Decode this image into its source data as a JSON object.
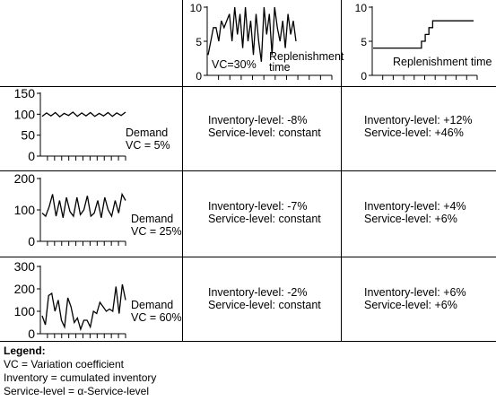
{
  "header": {
    "vc_chart": {
      "label": "VC=30%",
      "caption_line1": "Replenishment",
      "caption_line2": "time",
      "ticks": [
        "0",
        "5",
        "10"
      ],
      "ylim": [
        0,
        10
      ],
      "values": [
        3,
        5,
        7,
        7,
        5,
        8,
        7,
        8,
        9,
        5,
        10,
        6,
        9,
        4,
        10,
        5,
        8,
        3,
        9,
        5,
        2,
        10,
        6,
        9,
        3,
        10,
        7,
        5,
        8,
        4,
        9,
        6,
        8,
        5
      ]
    },
    "step_chart": {
      "caption": "Replenishment time",
      "ticks": [
        "0",
        "5",
        "10"
      ],
      "ylim": [
        0,
        10
      ],
      "values": [
        4,
        4,
        4,
        4,
        4,
        4,
        4,
        4,
        4,
        4,
        4,
        4,
        4,
        5,
        6,
        7,
        8,
        8,
        8,
        8,
        8,
        8,
        8,
        8,
        8,
        8,
        8,
        8
      ]
    }
  },
  "rows": [
    {
      "chart": {
        "caption_line1": "Demand",
        "caption_line2": "VC = 5%",
        "ticks": [
          "0",
          "50",
          "100",
          "150"
        ],
        "ylim": [
          0,
          150
        ],
        "values": [
          95,
          103,
          96,
          104,
          94,
          102,
          97,
          105,
          95,
          103,
          96,
          104,
          95,
          102,
          96,
          104,
          95,
          103,
          97,
          105
        ]
      },
      "cells": [
        {
          "line1": "Inventory-level: -8%",
          "line2": "Service-level: constant"
        },
        {
          "line1": "Inventory-level: +12%",
          "line2": "Service-level: +46%"
        }
      ]
    },
    {
      "chart": {
        "caption_line1": "Demand",
        "caption_line2": "VC = 25%",
        "ticks": [
          "0",
          "100",
          "200"
        ],
        "ylim": [
          0,
          200
        ],
        "values": [
          90,
          80,
          110,
          150,
          80,
          130,
          75,
          140,
          95,
          80,
          140,
          85,
          100,
          145,
          80,
          90,
          130,
          75,
          140,
          100,
          80,
          130,
          90,
          150,
          130
        ]
      },
      "cells": [
        {
          "line1": "Inventory-level: -7%",
          "line2": "Service-level: constant"
        },
        {
          "line1": "Inventory-level: +4%",
          "line2": "Service-level: +6%"
        }
      ]
    },
    {
      "chart": {
        "caption_line1": "Demand",
        "caption_line2": "VC = 60%",
        "ticks": [
          "0",
          "100",
          "200",
          "300"
        ],
        "ylim": [
          0,
          300
        ],
        "values": [
          80,
          40,
          170,
          180,
          100,
          150,
          60,
          30,
          160,
          120,
          50,
          70,
          20,
          60,
          60,
          30,
          100,
          90,
          140,
          120,
          100,
          110,
          100,
          210,
          90,
          220,
          150
        ]
      },
      "cells": [
        {
          "line1": "Inventory-level: -2%",
          "line2": "Service-level: constant"
        },
        {
          "line1": "Inventory-level: +6%",
          "line2": "Service-level: +6%"
        }
      ]
    }
  ],
  "legend": {
    "title": "Legend:",
    "lines": [
      "VC = Variation coefficient",
      "Inventory = cumulated inventory",
      "Service-level = α-Service-level"
    ]
  }
}
